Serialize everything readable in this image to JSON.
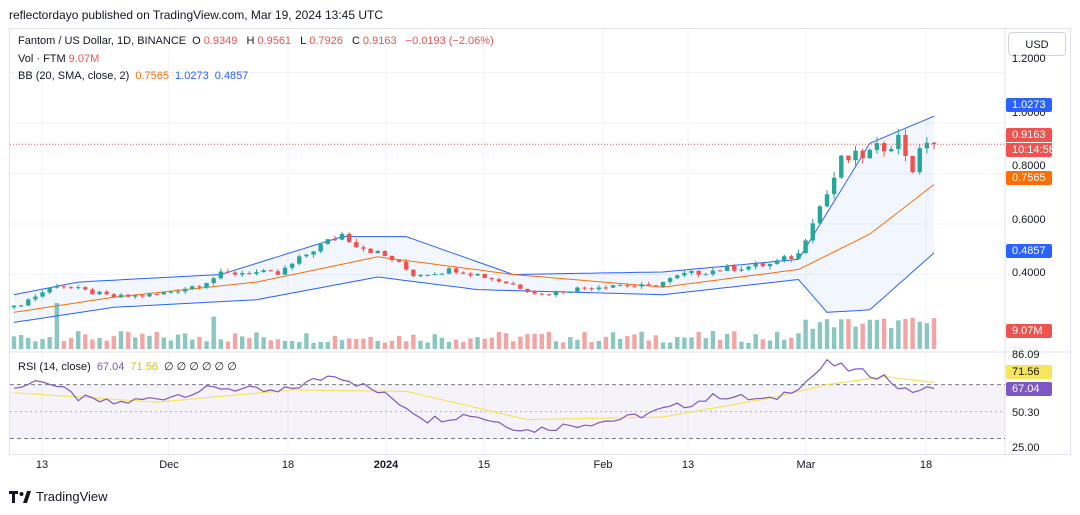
{
  "header": {
    "published": "reflectordayo published on TradingView.com, Mar 19, 2024 13:45 UTC"
  },
  "legend": {
    "symbol": "Fantom / US Dollar, 1D, BINANCE",
    "o_label": "O",
    "o": "0.9349",
    "h_label": "H",
    "h": "0.9561",
    "l_label": "L",
    "l": "0.7926",
    "c_label": "C",
    "c": "0.9163",
    "change": "−0.0193 (−2.06%)",
    "vol_label": "Vol · FTM",
    "vol": "9.07M",
    "bb_label": "BB (20, SMA, close, 2)",
    "bb_mid": "0.7565",
    "bb_up": "1.0273",
    "bb_low": "0.4857",
    "rsi_label": "RSI (14, close)",
    "rsi": "67.04",
    "rsi_ma": "71.56",
    "rsi_extra": "∅ ∅ ∅ ∅ ∅ ∅"
  },
  "currency_button": "USD",
  "price_axis": [
    "1.2000",
    "1.0000",
    "0.8000",
    "0.6000",
    "0.4000"
  ],
  "price_tags": {
    "bb_up": "1.0273",
    "last": "0.9163",
    "countdown": "10:14:58",
    "bb_mid": "0.7565",
    "bb_low": "0.4857",
    "vol": "9.07M"
  },
  "rsi_axis": [
    "86.09",
    "50.30",
    "25.00"
  ],
  "rsi_tags": {
    "ma": "71.56",
    "rsi": "67.04"
  },
  "time_axis": [
    "13",
    "Dec",
    "18",
    "2024",
    "15",
    "Feb",
    "13",
    "Mar",
    "18"
  ],
  "brand": "TradingView",
  "colors": {
    "up": "#26a69a",
    "down": "#ef5350",
    "bb_band": "#2962ff",
    "bb_basis": "#ff6d00",
    "rsi": "#7e57c2",
    "rsi_ma": "#f7e55a",
    "vol_up": "#8ac7c1",
    "vol_down": "#f2a6a4"
  },
  "chart_data": {
    "type": "candlestick",
    "title": "Fantom / US Dollar, 1D, BINANCE",
    "x_range": [
      "2023-11-11",
      "2024-03-19"
    ],
    "y_range": [
      0.18,
      1.25
    ],
    "close_anchors": [
      [
        "2023-11-11",
        0.27
      ],
      [
        "2023-11-13",
        0.3
      ],
      [
        "2023-11-17",
        0.36
      ],
      [
        "2023-11-20",
        0.34
      ],
      [
        "2023-11-25",
        0.31
      ],
      [
        "2023-12-01",
        0.32
      ],
      [
        "2023-12-07",
        0.36
      ],
      [
        "2023-12-10",
        0.4
      ],
      [
        "2023-12-14",
        0.41
      ],
      [
        "2023-12-18",
        0.4
      ],
      [
        "2023-12-23",
        0.5
      ],
      [
        "2023-12-27",
        0.56
      ],
      [
        "2023-12-29",
        0.52
      ],
      [
        "2024-01-03",
        0.46
      ],
      [
        "2024-01-06",
        0.4
      ],
      [
        "2024-01-12",
        0.42
      ],
      [
        "2024-01-15",
        0.4
      ],
      [
        "2024-01-20",
        0.36
      ],
      [
        "2024-01-24",
        0.32
      ],
      [
        "2024-01-28",
        0.34
      ],
      [
        "2024-02-03",
        0.36
      ],
      [
        "2024-02-08",
        0.35
      ],
      [
        "2024-02-13",
        0.4
      ],
      [
        "2024-02-18",
        0.42
      ],
      [
        "2024-02-25",
        0.44
      ],
      [
        "2024-02-29",
        0.48
      ],
      [
        "2024-03-02",
        0.62
      ],
      [
        "2024-03-04",
        0.72
      ],
      [
        "2024-03-06",
        0.85
      ],
      [
        "2024-03-10",
        0.88
      ],
      [
        "2024-03-14",
        0.94
      ],
      [
        "2024-03-16",
        0.82
      ],
      [
        "2024-03-18",
        0.935
      ],
      [
        "2024-03-19",
        0.9163
      ]
    ],
    "bollinger": {
      "upper": [
        [
          "2023-11-11",
          0.32
        ],
        [
          "2023-11-20",
          0.37
        ],
        [
          "2023-12-10",
          0.4
        ],
        [
          "2023-12-27",
          0.55
        ],
        [
          "2024-01-05",
          0.55
        ],
        [
          "2024-01-20",
          0.4
        ],
        [
          "2024-02-10",
          0.41
        ],
        [
          "2024-02-29",
          0.46
        ],
        [
          "2024-03-10",
          0.92
        ],
        [
          "2024-03-19",
          1.0273
        ]
      ],
      "basis": [
        [
          "2023-11-11",
          0.25
        ],
        [
          "2023-11-25",
          0.31
        ],
        [
          "2023-12-15",
          0.37
        ],
        [
          "2024-01-01",
          0.47
        ],
        [
          "2024-01-20",
          0.4
        ],
        [
          "2024-02-10",
          0.35
        ],
        [
          "2024-02-29",
          0.42
        ],
        [
          "2024-03-10",
          0.56
        ],
        [
          "2024-03-19",
          0.7565
        ]
      ],
      "lower": [
        [
          "2023-11-11",
          0.21
        ],
        [
          "2023-11-25",
          0.27
        ],
        [
          "2023-12-15",
          0.3
        ],
        [
          "2024-01-01",
          0.39
        ],
        [
          "2024-01-15",
          0.34
        ],
        [
          "2024-02-10",
          0.32
        ],
        [
          "2024-02-29",
          0.38
        ],
        [
          "2024-03-04",
          0.25
        ],
        [
          "2024-03-10",
          0.26
        ],
        [
          "2024-03-19",
          0.4857
        ]
      ]
    },
    "rsi": {
      "y_range": [
        20,
        92
      ],
      "overbought": 70,
      "mid": 50,
      "oversold": 30,
      "anchors": [
        [
          "2023-11-11",
          67
        ],
        [
          "2023-11-15",
          74
        ],
        [
          "2023-11-20",
          60
        ],
        [
          "2023-11-25",
          56
        ],
        [
          "2023-12-01",
          60
        ],
        [
          "2023-12-10",
          68
        ],
        [
          "2023-12-18",
          64
        ],
        [
          "2023-12-26",
          78
        ],
        [
          "2024-01-03",
          60
        ],
        [
          "2024-01-08",
          44
        ],
        [
          "2024-01-14",
          48
        ],
        [
          "2024-01-22",
          36
        ],
        [
          "2024-01-28",
          40
        ],
        [
          "2024-02-05",
          45
        ],
        [
          "2024-02-13",
          55
        ],
        [
          "2024-02-18",
          62
        ],
        [
          "2024-02-25",
          58
        ],
        [
          "2024-03-01",
          72
        ],
        [
          "2024-03-04",
          86
        ],
        [
          "2024-03-08",
          80
        ],
        [
          "2024-03-12",
          76
        ],
        [
          "2024-03-15",
          65
        ],
        [
          "2024-03-19",
          67.04
        ]
      ],
      "ma_anchors": [
        [
          "2023-11-11",
          64
        ],
        [
          "2023-12-01",
          57
        ],
        [
          "2023-12-20",
          66
        ],
        [
          "2024-01-05",
          65
        ],
        [
          "2024-01-22",
          44
        ],
        [
          "2024-02-10",
          46
        ],
        [
          "2024-02-25",
          60
        ],
        [
          "2024-03-04",
          70
        ],
        [
          "2024-03-12",
          76
        ],
        [
          "2024-03-19",
          71.56
        ]
      ]
    },
    "volume_note": "Volume bars shown under price; last volume 9.07M"
  }
}
